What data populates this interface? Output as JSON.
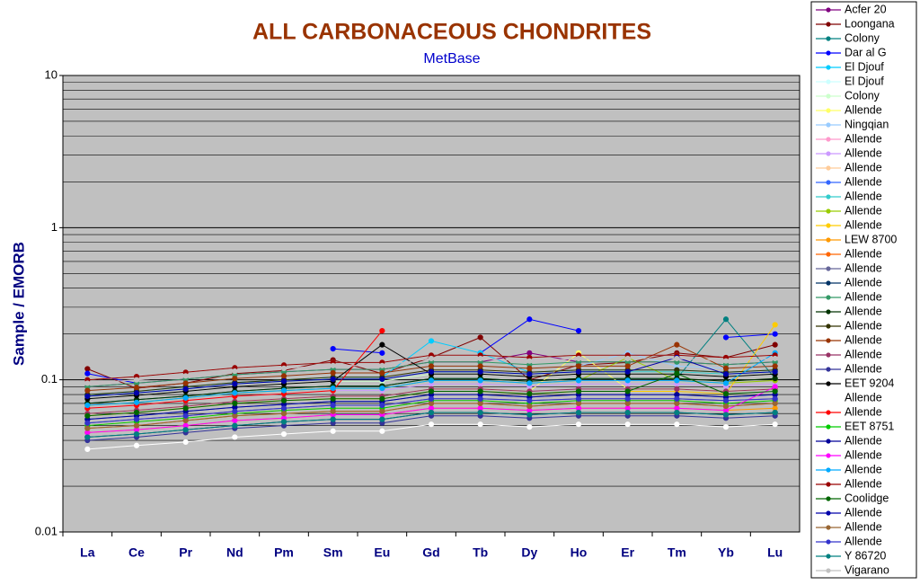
{
  "chart_data": {
    "type": "line",
    "title": "ALL CARBONACEOUS CHONDRITES",
    "subtitle": "MetBase",
    "y_label": "Sample / EMORB",
    "log_scale": true,
    "grid": true,
    "legend_position": "right",
    "ylim": [
      0.01,
      10
    ],
    "yticks": [
      0.01,
      0.1,
      1,
      10
    ],
    "categories": [
      "La",
      "Ce",
      "Pr",
      "Nd",
      "Pm",
      "Sm",
      "Eu",
      "Gd",
      "Tb",
      "Dy",
      "Ho",
      "Er",
      "Tm",
      "Yb",
      "Lu"
    ],
    "series": [
      {
        "name": "Acfer 20",
        "color": "#800080",
        "values": [
          0.09,
          0.095,
          0.101,
          0.108,
          0.113,
          0.117,
          0.117,
          0.131,
          0.131,
          0.15,
          0.131,
          0.131,
          0.131,
          0.126,
          0.131
        ]
      },
      {
        "name": "Loongana",
        "color": "#800000",
        "values": [
          0.118,
          0.088,
          0.095,
          0.11,
          0.115,
          0.135,
          0.11,
          0.14,
          0.19,
          0.1,
          0.125,
          0.13,
          0.15,
          0.14,
          0.17
        ]
      },
      {
        "name": "Colony",
        "color": "#008080",
        "values": [
          0.07,
          0.074,
          0.078,
          0.084,
          0.088,
          0.091,
          0.091,
          0.102,
          0.102,
          0.098,
          0.102,
          0.102,
          0.102,
          0.25,
          0.102
        ]
      },
      {
        "name": "Dar al G",
        "color": "#0000ff",
        "values": [
          0.11,
          0.095,
          null,
          null,
          null,
          0.16,
          0.15,
          null,
          0.15,
          0.25,
          0.21,
          null,
          null,
          0.19,
          0.2
        ]
      },
      {
        "name": "El Djouf",
        "color": "#00ccff",
        "values": [
          0.08,
          0.084,
          0.09,
          0.096,
          0.1,
          0.104,
          0.104,
          0.18,
          0.15,
          0.112,
          0.116,
          0.116,
          0.116,
          0.112,
          0.116
        ]
      },
      {
        "name": "El Djouf",
        "color": "#ccffff",
        "values": [
          0.1,
          0.105,
          0.112,
          0.12,
          0.125,
          0.13,
          0.13,
          0.145,
          0.145,
          0.14,
          0.145,
          0.145,
          0.145,
          0.14,
          0.145
        ]
      },
      {
        "name": "Colony",
        "color": "#ccffcc",
        "values": [
          0.075,
          0.079,
          0.084,
          0.09,
          0.094,
          0.098,
          0.098,
          0.109,
          0.109,
          0.105,
          0.109,
          0.109,
          0.109,
          0.105,
          0.109
        ]
      },
      {
        "name": "Allende",
        "color": "#ffff66",
        "values": [
          0.06,
          0.063,
          0.067,
          0.072,
          0.075,
          0.078,
          0.078,
          0.087,
          0.087,
          0.084,
          0.15,
          0.087,
          0.087,
          0.084,
          0.087
        ]
      },
      {
        "name": "Ningqian",
        "color": "#99ccff",
        "values": [
          0.085,
          0.089,
          0.095,
          0.102,
          0.106,
          0.111,
          0.111,
          0.123,
          0.123,
          0.119,
          0.123,
          0.15,
          0.123,
          0.119,
          0.123
        ]
      },
      {
        "name": "Allende",
        "color": "#ff99cc",
        "values": [
          0.095,
          0.1,
          0.106,
          0.114,
          0.119,
          0.124,
          0.124,
          0.138,
          0.138,
          0.133,
          0.138,
          0.138,
          0.138,
          0.133,
          0.138
        ]
      },
      {
        "name": "Allende",
        "color": "#cc99ff",
        "values": [
          0.065,
          0.068,
          0.073,
          0.078,
          0.081,
          0.085,
          0.085,
          0.094,
          0.094,
          0.091,
          0.094,
          0.094,
          0.094,
          0.091,
          0.094
        ]
      },
      {
        "name": "Allende",
        "color": "#ffcc99",
        "values": [
          0.05,
          0.053,
          0.056,
          0.06,
          0.063,
          0.065,
          0.065,
          0.073,
          0.073,
          0.07,
          0.073,
          0.073,
          0.073,
          0.07,
          0.073
        ]
      },
      {
        "name": "Allende",
        "color": "#3366ff",
        "values": [
          0.055,
          0.058,
          0.062,
          0.066,
          0.069,
          0.072,
          0.072,
          0.08,
          0.08,
          0.077,
          0.08,
          0.08,
          0.08,
          0.077,
          0.08
        ]
      },
      {
        "name": "Allende",
        "color": "#33cccc",
        "values": [
          0.078,
          0.082,
          0.087,
          0.094,
          0.098,
          0.101,
          0.101,
          0.113,
          0.113,
          0.109,
          0.113,
          0.113,
          0.113,
          0.109,
          0.113
        ]
      },
      {
        "name": "Allende",
        "color": "#99cc00",
        "values": [
          0.068,
          0.071,
          0.076,
          0.082,
          0.085,
          0.088,
          0.088,
          0.099,
          0.099,
          0.095,
          0.099,
          0.14,
          0.099,
          0.095,
          0.099
        ]
      },
      {
        "name": "Allende",
        "color": "#ffcc00",
        "values": [
          0.058,
          0.061,
          0.065,
          0.07,
          0.073,
          0.075,
          0.075,
          0.084,
          0.084,
          0.081,
          0.084,
          0.084,
          0.084,
          0.081,
          0.23
        ]
      },
      {
        "name": "LEW 8700",
        "color": "#ff9900",
        "values": [
          0.045,
          0.047,
          0.05,
          0.054,
          0.056,
          0.059,
          0.059,
          0.065,
          0.065,
          0.063,
          0.065,
          0.065,
          0.065,
          0.063,
          0.065
        ]
      },
      {
        "name": "Allende",
        "color": "#ff6600",
        "values": [
          0.048,
          0.05,
          0.054,
          0.058,
          0.06,
          0.062,
          0.062,
          0.07,
          0.07,
          0.067,
          0.07,
          0.07,
          0.07,
          0.067,
          0.07
        ]
      },
      {
        "name": "Allende",
        "color": "#666699",
        "values": [
          0.052,
          0.055,
          0.058,
          0.062,
          0.065,
          0.068,
          0.068,
          0.075,
          0.075,
          0.073,
          0.075,
          0.075,
          0.075,
          0.073,
          0.075
        ]
      },
      {
        "name": "Allende",
        "color": "#003366",
        "values": [
          0.042,
          0.044,
          0.047,
          0.05,
          0.053,
          0.055,
          0.055,
          0.061,
          0.061,
          0.059,
          0.061,
          0.061,
          0.061,
          0.059,
          0.061
        ]
      },
      {
        "name": "Allende",
        "color": "#339966",
        "values": [
          0.09,
          0.095,
          0.101,
          0.108,
          0.113,
          0.117,
          0.117,
          0.131,
          0.131,
          0.126,
          0.131,
          0.131,
          0.131,
          0.126,
          0.131
        ]
      },
      {
        "name": "Allende",
        "color": "#003300",
        "values": [
          0.07,
          0.074,
          0.078,
          0.084,
          0.088,
          0.091,
          0.091,
          0.102,
          0.102,
          0.098,
          0.102,
          0.102,
          0.102,
          0.098,
          0.102
        ]
      },
      {
        "name": "Allende",
        "color": "#333300",
        "values": [
          0.08,
          0.084,
          0.09,
          0.096,
          0.1,
          0.104,
          0.104,
          0.116,
          0.116,
          0.112,
          0.116,
          0.116,
          0.116,
          0.112,
          0.116
        ]
      },
      {
        "name": "Allende",
        "color": "#993300",
        "values": [
          0.085,
          0.089,
          0.095,
          0.102,
          0.106,
          0.111,
          0.111,
          0.123,
          0.123,
          0.119,
          0.123,
          0.123,
          0.17,
          0.119,
          0.123
        ]
      },
      {
        "name": "Allende",
        "color": "#993366",
        "values": [
          0.06,
          0.063,
          0.067,
          0.072,
          0.075,
          0.078,
          0.078,
          0.087,
          0.087,
          0.084,
          0.087,
          0.087,
          0.087,
          0.084,
          0.087
        ]
      },
      {
        "name": "Allende",
        "color": "#333399",
        "values": [
          0.04,
          0.042,
          0.045,
          0.048,
          0.05,
          0.052,
          0.052,
          0.058,
          0.058,
          0.056,
          0.058,
          0.058,
          0.058,
          0.056,
          0.058
        ]
      },
      {
        "name": "EET 9204",
        "color": "#000000",
        "values": [
          0.075,
          0.079,
          0.084,
          0.09,
          0.094,
          0.098,
          0.17,
          0.109,
          0.109,
          0.105,
          0.109,
          0.109,
          0.109,
          0.105,
          0.109
        ]
      },
      {
        "name": "Allende",
        "color": "#ffffff",
        "values": [
          0.035,
          0.037,
          0.039,
          0.042,
          0.044,
          0.046,
          0.046,
          0.051,
          0.051,
          0.049,
          0.051,
          0.051,
          0.051,
          0.049,
          0.051
        ]
      },
      {
        "name": "Allende",
        "color": "#ff0000",
        "values": [
          0.065,
          0.068,
          0.073,
          0.078,
          0.081,
          0.085,
          0.21,
          null,
          null,
          null,
          null,
          null,
          null,
          null,
          null
        ]
      },
      {
        "name": "EET 8751",
        "color": "#00cc00",
        "values": [
          0.05,
          0.053,
          0.056,
          0.06,
          0.063,
          0.065,
          0.065,
          0.073,
          0.073,
          0.07,
          0.073,
          0.073,
          0.073,
          0.07,
          0.073
        ]
      },
      {
        "name": "Allende",
        "color": "#000099",
        "values": [
          0.055,
          0.058,
          0.062,
          0.066,
          0.069,
          0.072,
          0.072,
          0.08,
          0.08,
          0.077,
          0.08,
          0.08,
          0.08,
          0.077,
          0.08
        ]
      },
      {
        "name": "Allende",
        "color": "#ff00ff",
        "values": [
          0.045,
          0.047,
          0.05,
          0.054,
          0.056,
          0.059,
          0.059,
          0.065,
          0.065,
          0.063,
          0.065,
          0.065,
          0.065,
          0.063,
          0.09
        ]
      },
      {
        "name": "Allende",
        "color": "#00aaff",
        "values": [
          0.068,
          0.071,
          0.076,
          0.082,
          0.085,
          0.088,
          0.088,
          0.099,
          0.099,
          0.095,
          0.099,
          0.099,
          0.099,
          0.095,
          0.15
        ]
      },
      {
        "name": "Allende",
        "color": "#990000",
        "values": [
          0.1,
          0.105,
          0.112,
          0.12,
          0.125,
          0.13,
          0.13,
          0.145,
          0.145,
          0.14,
          0.145,
          0.145,
          0.145,
          0.14,
          0.145
        ]
      },
      {
        "name": "Coolidge",
        "color": "#006600",
        "values": [
          0.058,
          0.061,
          0.065,
          0.07,
          0.073,
          0.075,
          0.075,
          0.084,
          0.084,
          0.081,
          0.084,
          0.084,
          0.11,
          0.081,
          0.084
        ]
      },
      {
        "name": "Allende",
        "color": "#0000aa",
        "values": [
          0.078,
          0.082,
          0.087,
          0.094,
          0.098,
          0.101,
          0.101,
          0.113,
          0.113,
          0.109,
          0.113,
          0.113,
          0.14,
          0.109,
          0.113
        ]
      },
      {
        "name": "Allende",
        "color": "#996633",
        "values": [
          0.048,
          0.05,
          0.054,
          0.058,
          0.06,
          0.062,
          0.062,
          0.07,
          0.07,
          0.067,
          0.07,
          0.07,
          0.07,
          0.067,
          0.07
        ]
      },
      {
        "name": "Allende",
        "color": "#3333cc",
        "values": [
          0.052,
          0.055,
          0.058,
          0.062,
          0.065,
          0.068,
          0.068,
          0.075,
          0.075,
          0.073,
          0.075,
          0.075,
          0.075,
          0.073,
          0.075
        ]
      },
      {
        "name": "Y 86720",
        "color": "#008080",
        "values": [
          0.042,
          0.044,
          0.047,
          0.05,
          0.053,
          0.055,
          0.055,
          0.061,
          0.061,
          0.059,
          0.061,
          0.061,
          0.061,
          0.059,
          0.061
        ]
      },
      {
        "name": "Vigarano",
        "color": "#c0c0c0",
        "values": [
          0.095,
          0.1,
          0.106,
          0.114,
          0.119,
          0.124,
          0.124,
          0.138,
          0.138,
          0.133,
          0.138,
          0.138,
          0.138,
          0.133,
          0.138
        ]
      }
    ]
  }
}
